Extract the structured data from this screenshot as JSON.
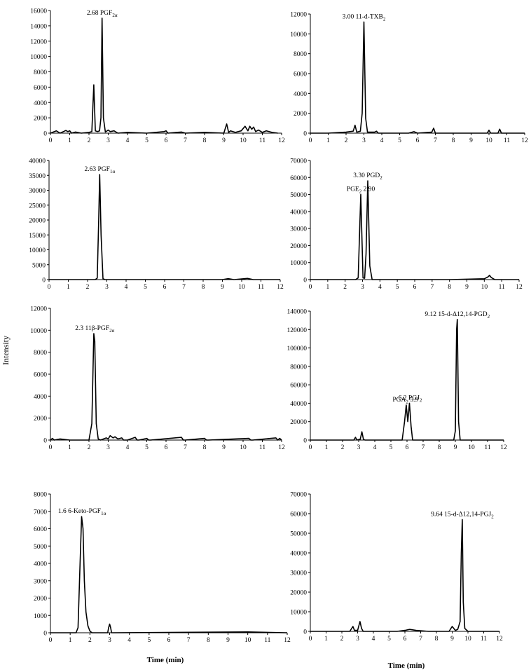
{
  "figure": {
    "ylabel": "Intensity",
    "xlabel_left": "Time (min)",
    "xlabel_right": "Time (min)"
  },
  "chart_data": [
    {
      "type": "line",
      "xlim": [
        0,
        12
      ],
      "ylim": [
        0,
        16000
      ],
      "xticks": [
        0,
        1,
        2,
        3,
        4,
        5,
        6,
        7,
        8,
        9,
        10,
        11,
        12
      ],
      "yticks": [
        0,
        2000,
        4000,
        6000,
        8000,
        10000,
        12000,
        14000,
        16000
      ],
      "annotations": [
        {
          "text": "2.68 PGF",
          "sub": "2α",
          "x": 2.68,
          "y": 15000
        }
      ],
      "series": [
        {
          "x": [
            0,
            0.3,
            0.5,
            0.8,
            0.9,
            1.0,
            1.1,
            1.3,
            1.6,
            2.0,
            2.15,
            2.25,
            2.33,
            2.45,
            2.55,
            2.62,
            2.68,
            2.75,
            2.85,
            3.0,
            3.1,
            3.3,
            3.5,
            4.0,
            5.0,
            5.9,
            6.0,
            6.1,
            6.8,
            7.0,
            8.0,
            9.0,
            9.15,
            9.25,
            9.35,
            9.6,
            9.9,
            10.1,
            10.25,
            10.35,
            10.45,
            10.55,
            10.65,
            10.8,
            11.0,
            11.2,
            11.5,
            11.8
          ],
          "y": [
            0,
            300,
            0,
            350,
            200,
            300,
            0,
            150,
            0,
            100,
            200,
            6300,
            300,
            200,
            300,
            2000,
            15000,
            2000,
            150,
            400,
            200,
            300,
            0,
            100,
            0,
            200,
            300,
            0,
            150,
            0,
            100,
            0,
            1200,
            100,
            300,
            100,
            300,
            900,
            300,
            900,
            500,
            800,
            200,
            400,
            100,
            300,
            100,
            0
          ]
        }
      ]
    },
    {
      "type": "line",
      "xlim": [
        0,
        12
      ],
      "ylim": [
        0,
        12000
      ],
      "xticks": [
        0,
        1,
        2,
        3,
        4,
        5,
        6,
        7,
        8,
        9,
        10,
        11,
        12
      ],
      "yticks": [
        0,
        2000,
        4000,
        6000,
        8000,
        10000,
        12000
      ],
      "annotations": [
        {
          "text": "3.00 11-d-TXB",
          "sub": "2",
          "x": 3.0,
          "y": 11200
        }
      ],
      "series": [
        {
          "x": [
            0,
            1,
            2,
            2.4,
            2.5,
            2.6,
            2.8,
            2.9,
            3.0,
            3.1,
            3.2,
            3.6,
            3.7,
            3.8,
            5.5,
            5.8,
            6.0,
            6.8,
            6.9,
            7.0,
            9.9,
            10.0,
            10.1,
            10.5,
            10.6,
            10.7,
            12
          ],
          "y": [
            0,
            0,
            100,
            200,
            800,
            100,
            200,
            2000,
            11200,
            1500,
            100,
            100,
            200,
            0,
            0,
            150,
            0,
            100,
            500,
            0,
            0,
            300,
            0,
            0,
            400,
            0,
            0
          ]
        }
      ]
    },
    {
      "type": "line",
      "xlim": [
        0,
        12
      ],
      "ylim": [
        0,
        40000
      ],
      "xticks": [
        0,
        1,
        2,
        3,
        4,
        5,
        6,
        7,
        8,
        9,
        10,
        11,
        12
      ],
      "yticks": [
        0,
        5000,
        10000,
        15000,
        20000,
        25000,
        30000,
        35000,
        40000
      ],
      "annotations": [
        {
          "text": "2.63 PGF",
          "sub": "1α",
          "x": 2.63,
          "y": 35300
        }
      ],
      "series": [
        {
          "x": [
            0,
            2.4,
            2.5,
            2.58,
            2.63,
            2.7,
            2.8,
            2.9,
            9.0,
            9.3,
            9.6,
            10.0,
            10.3,
            10.6,
            12
          ],
          "y": [
            0,
            0,
            500,
            20000,
            35300,
            15000,
            300,
            0,
            0,
            300,
            0,
            200,
            400,
            0,
            0
          ]
        }
      ]
    },
    {
      "type": "line",
      "xlim": [
        0,
        12
      ],
      "ylim": [
        0,
        70000
      ],
      "xticks": [
        0,
        1,
        2,
        3,
        4,
        5,
        6,
        7,
        8,
        9,
        10,
        11,
        12
      ],
      "yticks": [
        0,
        10000,
        20000,
        30000,
        40000,
        50000,
        60000,
        70000
      ],
      "annotations": [
        {
          "text": "3.30 PGD",
          "sub": "2",
          "x": 3.3,
          "y": 58000
        },
        {
          "text": "PGE",
          "sub": "2",
          "after": " 2.90",
          "x": 2.9,
          "y": 50000
        }
      ],
      "series": [
        {
          "x": [
            0,
            2.6,
            2.75,
            2.9,
            3.03,
            3.12,
            3.2,
            3.3,
            3.42,
            3.55,
            4.0,
            8.0,
            10.0,
            10.2,
            10.3,
            10.4,
            10.6,
            12
          ],
          "y": [
            0,
            0,
            1000,
            50000,
            1000,
            800,
            15000,
            58000,
            8000,
            0,
            0,
            0,
            500,
            1500,
            2500,
            1200,
            0,
            0
          ]
        }
      ]
    },
    {
      "type": "line",
      "xlim": [
        0,
        12
      ],
      "ylim": [
        0,
        12000
      ],
      "xticks": [
        0,
        1,
        2,
        3,
        4,
        5,
        6,
        7,
        8,
        9,
        10,
        11,
        12
      ],
      "yticks": [
        0,
        2000,
        4000,
        6000,
        8000,
        10000,
        12000
      ],
      "annotations": [
        {
          "text": "2.3 11β-PGF",
          "sub": "2α",
          "x": 2.3,
          "y": 9700
        }
      ],
      "series": [
        {
          "x": [
            0,
            0.1,
            0.2,
            0.5,
            1.0,
            2.0,
            2.15,
            2.25,
            2.3,
            2.38,
            2.48,
            2.6,
            2.9,
            3.0,
            3.1,
            3.25,
            3.35,
            3.5,
            3.7,
            3.8,
            4.0,
            4.4,
            4.5,
            4.6,
            5.0,
            5.1,
            5.2,
            6.8,
            6.9,
            7.0,
            8.0,
            8.1,
            8.2,
            10.3,
            10.4,
            10.5,
            11.7,
            11.8,
            11.9,
            12
          ],
          "y": [
            0,
            150,
            0,
            100,
            0,
            0,
            1500,
            9700,
            9000,
            1500,
            100,
            0,
            200,
            100,
            400,
            200,
            300,
            100,
            200,
            0,
            0,
            250,
            0,
            0,
            150,
            0,
            0,
            250,
            0,
            0,
            150,
            0,
            0,
            150,
            0,
            0,
            200,
            0,
            150,
            0
          ]
        }
      ]
    },
    {
      "type": "line",
      "xlim": [
        0,
        12
      ],
      "ylim": [
        0,
        140000
      ],
      "xticks": [
        0,
        1,
        2,
        3,
        4,
        5,
        6,
        7,
        8,
        9,
        10,
        11,
        12
      ],
      "yticks": [
        0,
        20000,
        40000,
        60000,
        80000,
        100000,
        120000,
        140000
      ],
      "annotations": [
        {
          "text": "9.12 15-d-Δ12,14-PGD",
          "sub": "2",
          "x": 9.12,
          "y": 131000
        },
        {
          "text": "PGA",
          "sub": "2",
          "after": " 5.9",
          "x": 5.9,
          "y": 38000
        },
        {
          "text": "6.2 PGJ",
          "sub": "2",
          "x": 6.2,
          "y": 40000
        }
      ],
      "series": [
        {
          "x": [
            0,
            2.7,
            2.8,
            2.9,
            3.1,
            3.2,
            3.3,
            3.4,
            5.7,
            5.85,
            5.95,
            6.05,
            6.15,
            6.25,
            6.35,
            8.9,
            9.0,
            9.08,
            9.12,
            9.2,
            9.3,
            12
          ],
          "y": [
            0,
            0,
            3000,
            0,
            1000,
            9000,
            500,
            0,
            0,
            20000,
            38000,
            20000,
            40000,
            15000,
            0,
            0,
            10000,
            120000,
            131000,
            20000,
            0,
            0
          ]
        }
      ]
    },
    {
      "type": "line",
      "xlim": [
        0,
        12
      ],
      "ylim": [
        0,
        8000
      ],
      "xticks": [
        0,
        1,
        2,
        3,
        4,
        5,
        6,
        7,
        8,
        9,
        10,
        11,
        12
      ],
      "yticks": [
        0,
        1000,
        2000,
        3000,
        4000,
        5000,
        6000,
        7000,
        8000
      ],
      "annotations": [
        {
          "text": "1.6  6-Keto-PGF",
          "sub": "1α",
          "x": 1.6,
          "y": 6700
        }
      ],
      "series": [
        {
          "x": [
            0,
            1.3,
            1.4,
            1.5,
            1.58,
            1.65,
            1.72,
            1.8,
            1.9,
            2.0,
            2.1,
            2.9,
            2.95,
            3.0,
            3.05,
            3.1,
            10.0,
            12
          ],
          "y": [
            0,
            0,
            300,
            4000,
            6700,
            6000,
            3000,
            1200,
            400,
            100,
            0,
            0,
            300,
            500,
            300,
            0,
            50,
            0
          ]
        }
      ]
    },
    {
      "type": "line",
      "xlim": [
        0,
        12
      ],
      "ylim": [
        0,
        70000
      ],
      "xticks": [
        0,
        1,
        2,
        3,
        4,
        5,
        6,
        7,
        8,
        9,
        10,
        11,
        12
      ],
      "yticks": [
        0,
        10000,
        20000,
        30000,
        40000,
        50000,
        60000,
        70000
      ],
      "annotations": [
        {
          "text": "9.64 15-d-Δ12,14-PGJ",
          "sub": "2",
          "x": 9.64,
          "y": 57000
        }
      ],
      "series": [
        {
          "x": [
            0,
            2.5,
            2.7,
            2.8,
            3.0,
            3.15,
            3.25,
            3.35,
            4.0,
            5.5,
            6.0,
            6.3,
            6.7,
            7.5,
            8.8,
            9.0,
            9.2,
            9.35,
            9.5,
            9.58,
            9.64,
            9.7,
            9.8,
            10.0,
            12
          ],
          "y": [
            0,
            0,
            2500,
            500,
            500,
            5000,
            1500,
            0,
            0,
            0,
            500,
            1000,
            500,
            0,
            0,
            2500,
            500,
            1000,
            5000,
            40000,
            57000,
            15000,
            1500,
            0,
            0
          ]
        }
      ]
    }
  ]
}
